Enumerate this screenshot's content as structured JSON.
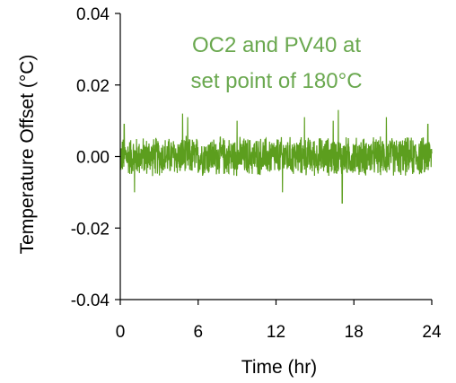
{
  "chart_data": {
    "type": "line",
    "title": "",
    "xlabel": "Time (hr)",
    "ylabel": "Temperature Offset (°C)",
    "xlim": [
      0,
      24
    ],
    "ylim": [
      -0.04,
      0.04
    ],
    "xticks": [
      0,
      6,
      12,
      18,
      24
    ],
    "xtick_labels": [
      "0",
      "6",
      "12",
      "18",
      "24"
    ],
    "yticks": [
      -0.04,
      -0.02,
      0.0,
      0.02,
      0.04
    ],
    "ytick_labels": [
      "-0.04",
      "-0.02",
      "0.00",
      "0.02",
      "0.04"
    ],
    "grid": false,
    "legend": "none",
    "annotation": {
      "lines": [
        "OC2 and PV40 at",
        "set point of 180°C"
      ],
      "color": "#6aa84f"
    },
    "series": [
      {
        "color": "#5c9e1e",
        "noise_band": [
          -0.006,
          0.006
        ],
        "peaks": [
          {
            "x": 0.3,
            "y": 0.009
          },
          {
            "x": 1.1,
            "y": -0.01
          },
          {
            "x": 4.8,
            "y": 0.012
          },
          {
            "x": 5.2,
            "y": 0.011
          },
          {
            "x": 9.0,
            "y": 0.01
          },
          {
            "x": 14.2,
            "y": 0.011
          },
          {
            "x": 16.4,
            "y": 0.01
          },
          {
            "x": 16.8,
            "y": 0.013
          },
          {
            "x": 17.1,
            "y": -0.013
          },
          {
            "x": 20.5,
            "y": 0.011
          },
          {
            "x": 12.5,
            "y": -0.01
          },
          {
            "x": 23.7,
            "y": 0.009
          }
        ]
      }
    ]
  }
}
